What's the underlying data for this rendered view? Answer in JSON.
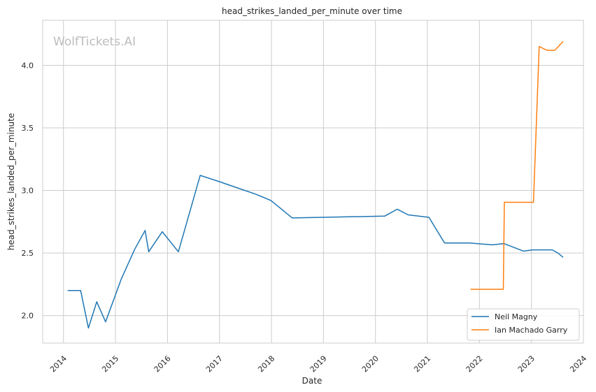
{
  "chart_data": {
    "type": "line",
    "title": "head_strikes_landed_per_minute over time",
    "xlabel": "Date",
    "ylabel": "head_strikes_landed_per_minute",
    "watermark": "WolfTickets.AI",
    "xlim": [
      2013.6,
      2024.0
    ],
    "ylim": [
      1.78,
      4.36
    ],
    "x_ticks": [
      "2014",
      "2015",
      "2016",
      "2017",
      "2018",
      "2019",
      "2020",
      "2021",
      "2022",
      "2023",
      "2024"
    ],
    "y_ticks": [
      "2.0",
      "2.5",
      "3.0",
      "3.5",
      "4.0"
    ],
    "grid": true,
    "legend_position": "bottom-right",
    "series": [
      {
        "name": "Neil Magny",
        "color": "#1f77b4",
        "x": [
          2014.08,
          2014.33,
          2014.48,
          2014.64,
          2014.81,
          2015.11,
          2015.37,
          2015.57,
          2015.64,
          2015.9,
          2016.21,
          2016.63,
          2017.0,
          2017.35,
          2017.7,
          2017.99,
          2018.4,
          2019.0,
          2020.18,
          2020.42,
          2020.63,
          2021.03,
          2021.33,
          2021.8,
          2022.25,
          2022.47,
          2022.85,
          2023.02,
          2023.4,
          2023.51,
          2023.61
        ],
        "y": [
          2.2,
          2.2,
          1.9,
          2.11,
          1.95,
          2.29,
          2.53,
          2.68,
          2.51,
          2.67,
          2.51,
          3.12,
          3.07,
          3.02,
          2.97,
          2.92,
          2.78,
          2.785,
          2.795,
          2.85,
          2.805,
          2.785,
          2.58,
          2.58,
          2.565,
          2.575,
          2.515,
          2.525,
          2.525,
          2.5,
          2.465
        ]
      },
      {
        "name": "Ian Machado Garry",
        "color": "#ff7f0e",
        "x": [
          2021.83,
          2022.46,
          2022.48,
          2023.04,
          2023.15,
          2023.3,
          2023.45,
          2023.61
        ],
        "y": [
          2.21,
          2.21,
          2.905,
          2.905,
          4.15,
          4.12,
          4.12,
          4.19
        ]
      }
    ]
  }
}
